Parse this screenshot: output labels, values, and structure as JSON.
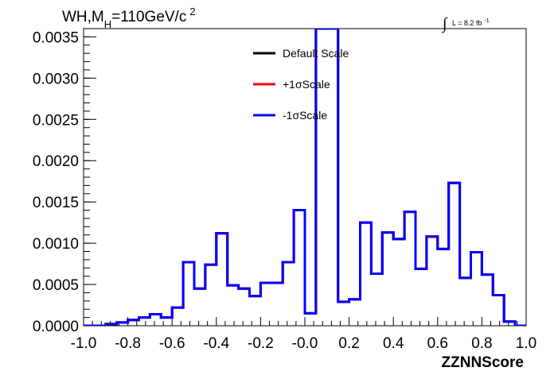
{
  "chart_data": {
    "type": "line",
    "title_parts": {
      "prefix": "WH,M",
      "subscript": "H",
      "mid": "=110GeV/c",
      "superscript": "2"
    },
    "lumi_parts": {
      "integral_symbol": "∫",
      "text": "L = 8.2 fb",
      "superscript": "-1"
    },
    "xlabel": "ZZNNScore",
    "ylabel": "",
    "xlim": [
      -1.0,
      1.0
    ],
    "ylim": [
      0,
      0.0036
    ],
    "x_ticks": [
      "-1.0",
      "-0.8",
      "-0.6",
      "-0.4",
      "-0.2",
      "-0.0",
      "0.2",
      "0.4",
      "0.6",
      "0.8",
      "1.0"
    ],
    "y_ticks": [
      "0.0000",
      "0.0005",
      "0.0010",
      "0.0015",
      "0.0020",
      "0.0025",
      "0.0030",
      "0.0035"
    ],
    "grid": false,
    "legend_position": "top-center",
    "bin_edges": [
      -1.0,
      -0.95,
      -0.9,
      -0.85,
      -0.8,
      -0.75,
      -0.7,
      -0.65,
      -0.6,
      -0.55,
      -0.5,
      -0.45,
      -0.4,
      -0.35,
      -0.3,
      -0.25,
      -0.2,
      -0.15,
      -0.1,
      -0.05,
      0.0,
      0.05,
      0.1,
      0.15,
      0.2,
      0.25,
      0.3,
      0.35,
      0.4,
      0.45,
      0.5,
      0.55,
      0.6,
      0.65,
      0.7,
      0.75,
      0.8,
      0.85,
      0.9,
      0.95,
      1.0
    ],
    "series": [
      {
        "name": "Default Scale",
        "color": "#000000",
        "values": [
          0.0,
          0.0,
          2e-05,
          4e-05,
          7e-05,
          0.0001,
          0.00014,
          0.0001,
          0.00022,
          0.00077,
          0.00045,
          0.00074,
          0.00112,
          0.00049,
          0.00045,
          0.00036,
          0.00052,
          0.00052,
          0.00077,
          0.0014,
          0.00015,
          0.0036,
          0.0036,
          0.00029,
          0.00032,
          0.00125,
          0.00063,
          0.00113,
          0.00105,
          0.00138,
          0.00069,
          0.00108,
          0.00093,
          0.00173,
          0.00058,
          0.00089,
          0.00062,
          0.00037,
          5e-05,
          0.0
        ]
      },
      {
        "name": "+1σScale",
        "color": "#ff0000",
        "values": [
          0.0,
          0.0,
          2e-05,
          4e-05,
          7e-05,
          0.0001,
          0.00014,
          0.0001,
          0.00022,
          0.00077,
          0.00045,
          0.00074,
          0.00112,
          0.00049,
          0.00045,
          0.00036,
          0.00052,
          0.00052,
          0.00077,
          0.0014,
          0.00015,
          0.0036,
          0.0036,
          0.00029,
          0.00032,
          0.00125,
          0.00063,
          0.00113,
          0.00105,
          0.00138,
          0.00069,
          0.00108,
          0.00093,
          0.00173,
          0.00058,
          0.00089,
          0.00062,
          0.00037,
          5e-05,
          0.0
        ]
      },
      {
        "name": "-1σScale",
        "color": "#0000ff",
        "values": [
          0.0,
          0.0,
          2e-05,
          4e-05,
          7e-05,
          0.0001,
          0.00014,
          0.0001,
          0.00022,
          0.00077,
          0.00045,
          0.00074,
          0.00112,
          0.00049,
          0.00045,
          0.00036,
          0.00052,
          0.00052,
          0.00077,
          0.0014,
          0.00015,
          0.0036,
          0.0036,
          0.00029,
          0.00032,
          0.00125,
          0.00063,
          0.00113,
          0.00105,
          0.00138,
          0.00069,
          0.00108,
          0.00093,
          0.00173,
          0.00058,
          0.00089,
          0.00062,
          0.00037,
          5e-05,
          0.0
        ]
      }
    ]
  }
}
